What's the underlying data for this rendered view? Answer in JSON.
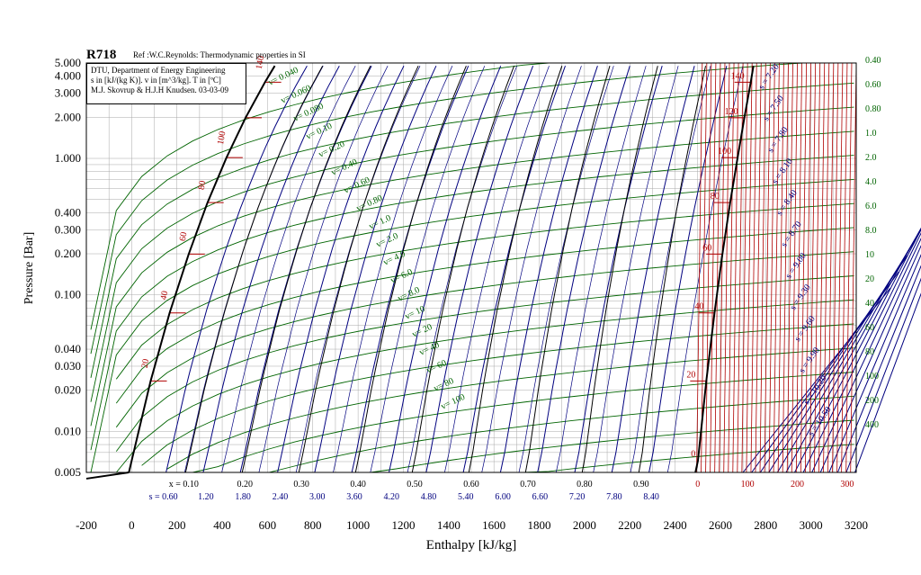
{
  "chart_data": {
    "type": "line",
    "title": "R718",
    "subtitle": "Ref :W.C.Reynolds: Thermodynamic properties in SI",
    "info_lines": [
      "DTU, Department of Energy Engineering",
      "s in [kJ/(kg K)]. v in [m^3/kg]. T in [ºC]",
      "M.J. Skovrup & H.J.H Knudsen. 03-03-09"
    ],
    "xlabel": "Enthalpy [kJ/kg]",
    "ylabel": "Pressure [Bar]",
    "xlim": [
      -200,
      3200
    ],
    "ylim": [
      0.005,
      5.0
    ],
    "y_scale": "log",
    "grid": true,
    "x_ticks": [
      "-200",
      "0",
      "200",
      "400",
      "600",
      "800",
      "1000",
      "1200",
      "1400",
      "1600",
      "1800",
      "2000",
      "2200",
      "2400",
      "2600",
      "2800",
      "3000",
      "3200"
    ],
    "y_ticks": [
      "5.000",
      "4.000",
      "3.000",
      "2.000",
      "1.000",
      "0.400",
      "0.300",
      "0.200",
      "0.100",
      "0.040",
      "0.030",
      "0.020",
      "0.010",
      "0.005"
    ],
    "y_tick_values": [
      5.0,
      4.0,
      3.0,
      2.0,
      1.0,
      0.4,
      0.3,
      0.2,
      0.1,
      0.04,
      0.03,
      0.02,
      0.01,
      0.005
    ],
    "quality_labels": [
      "x = 0.10",
      "0.20",
      "0.30",
      "0.40",
      "0.50",
      "0.60",
      "0.70",
      "0.80",
      "0.90"
    ],
    "quality_values": [
      0.1,
      0.2,
      0.3,
      0.4,
      0.5,
      0.6,
      0.7,
      0.8,
      0.9
    ],
    "entropy_labels": [
      "s = 0.60",
      "1.20",
      "1.80",
      "2.40",
      "3.00",
      "3.60",
      "4.20",
      "4.80",
      "5.40",
      "6.00",
      "6.60",
      "7.20",
      "7.80",
      "8.40"
    ],
    "entropy_bottom_values": [
      0.6,
      1.2,
      1.8,
      2.4,
      3.0,
      3.6,
      4.2,
      4.8,
      5.4,
      6.0,
      6.6,
      7.2,
      7.8,
      8.4
    ],
    "superheat_labels": [
      "0",
      "100",
      "200",
      "300"
    ],
    "superheat_values": [
      0,
      100,
      200,
      300
    ],
    "saturation_liquid": [
      [
        -12,
        0.005
      ],
      [
        0,
        0.0061
      ],
      [
        84,
        0.0234
      ],
      [
        168,
        0.0738
      ],
      [
        252,
        0.199
      ],
      [
        335,
        0.474
      ],
      [
        419,
        1.013
      ],
      [
        503,
        1.985
      ],
      [
        589,
        3.614
      ],
      [
        632,
        4.76
      ]
    ],
    "saturation_vapor": [
      [
        2490,
        0.005
      ],
      [
        2501,
        0.0061
      ],
      [
        2538,
        0.0234
      ],
      [
        2574,
        0.0738
      ],
      [
        2609,
        0.199
      ],
      [
        2643,
        0.474
      ],
      [
        2676,
        1.013
      ],
      [
        2706,
        1.985
      ],
      [
        2734,
        3.614
      ],
      [
        2746,
        4.76
      ]
    ],
    "temperature_labels_liquid": [
      "20",
      "40",
      "60",
      "80",
      "100",
      "120",
      "140"
    ],
    "temperature_labels_vapor": [
      "0",
      "20",
      "40",
      "60",
      "80",
      "100",
      "120",
      "140"
    ],
    "temperatures": [
      20,
      40,
      60,
      80,
      100,
      120,
      140
    ],
    "right_axis_volume_labels": [
      "0.40",
      "0.60",
      "0.80",
      "1.0",
      "2.0",
      "4.0",
      "6.0",
      "8.0",
      "10",
      "20",
      "40",
      "60",
      "80",
      "100",
      "200",
      "400"
    ],
    "volume_labels_center": [
      "v= 0.040",
      "v= 0.060",
      "v= 0.080",
      "v= 0.10",
      "v= 0.20",
      "v= 0.40",
      "v= 0.60",
      "v= 0.80",
      "v= 1.0",
      "v= 2.0",
      "v= 4.0",
      "v= 6.0",
      "v= 8.0",
      "v= 10",
      "v= 20",
      "v= 40",
      "v= 60",
      "v= 80",
      "v= 100"
    ],
    "entropy_vapor_labels": [
      "s = 7.20",
      "s = 7.50",
      "s = 7.80",
      "s = 8.10",
      "s = 8.40",
      "s = 8.70",
      "s = 9.00",
      "s = 9.30",
      "s = 9.60",
      "s = 9.90",
      "s = 10.20",
      "s = 10.50"
    ],
    "colors": {
      "saturation": "#000000",
      "isotherm": "#b00000",
      "isentrope": "#00007f",
      "isochore": "#006400",
      "quality": "#000000",
      "grid": "#a8a8a8"
    }
  }
}
